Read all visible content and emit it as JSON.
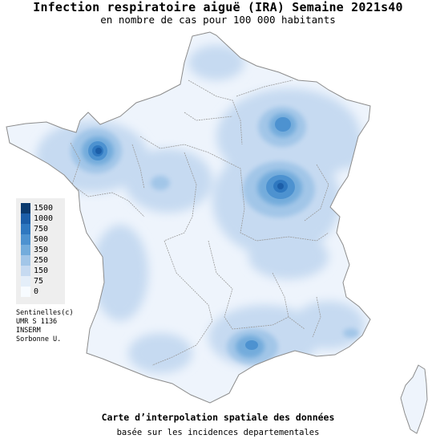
{
  "header": {
    "title": "Infection respiratoire aiguë (IRA) Semaine 2021s40",
    "subtitle": "en nombre de cas pour 100 000 habitants"
  },
  "legend": {
    "items": [
      {
        "label": "1500",
        "color": "#0b3a6e"
      },
      {
        "label": "1000",
        "color": "#1c5ea8"
      },
      {
        "label": "750",
        "color": "#2f78c0"
      },
      {
        "label": "500",
        "color": "#4d92d0"
      },
      {
        "label": "350",
        "color": "#73acdc"
      },
      {
        "label": "250",
        "color": "#a2c6e8"
      },
      {
        "label": "150",
        "color": "#c6daf1"
      },
      {
        "label": "75",
        "color": "#e4eef9"
      },
      {
        "label": "0",
        "color": "#f7fbff"
      }
    ]
  },
  "credit": {
    "lines": [
      "Sentinelles(c)",
      "UMR S 1136",
      "INSERM",
      "Sorbonne U."
    ]
  },
  "footer": {
    "line1": "Carte d’interpolation spatiale des données",
    "line2": "basée sur les incidences departementales"
  },
  "colors": {
    "base": "#eef4fc",
    "border": "#9a9a9a",
    "level_75": "#e4eef9",
    "level_150": "#c6daf1",
    "level_250": "#a2c6e8",
    "level_350": "#73acdc",
    "level_500": "#4d92d0",
    "level_750": "#2f78c0",
    "level_1000": "#1c5ea8",
    "level_1500": "#0b3a6e"
  }
}
